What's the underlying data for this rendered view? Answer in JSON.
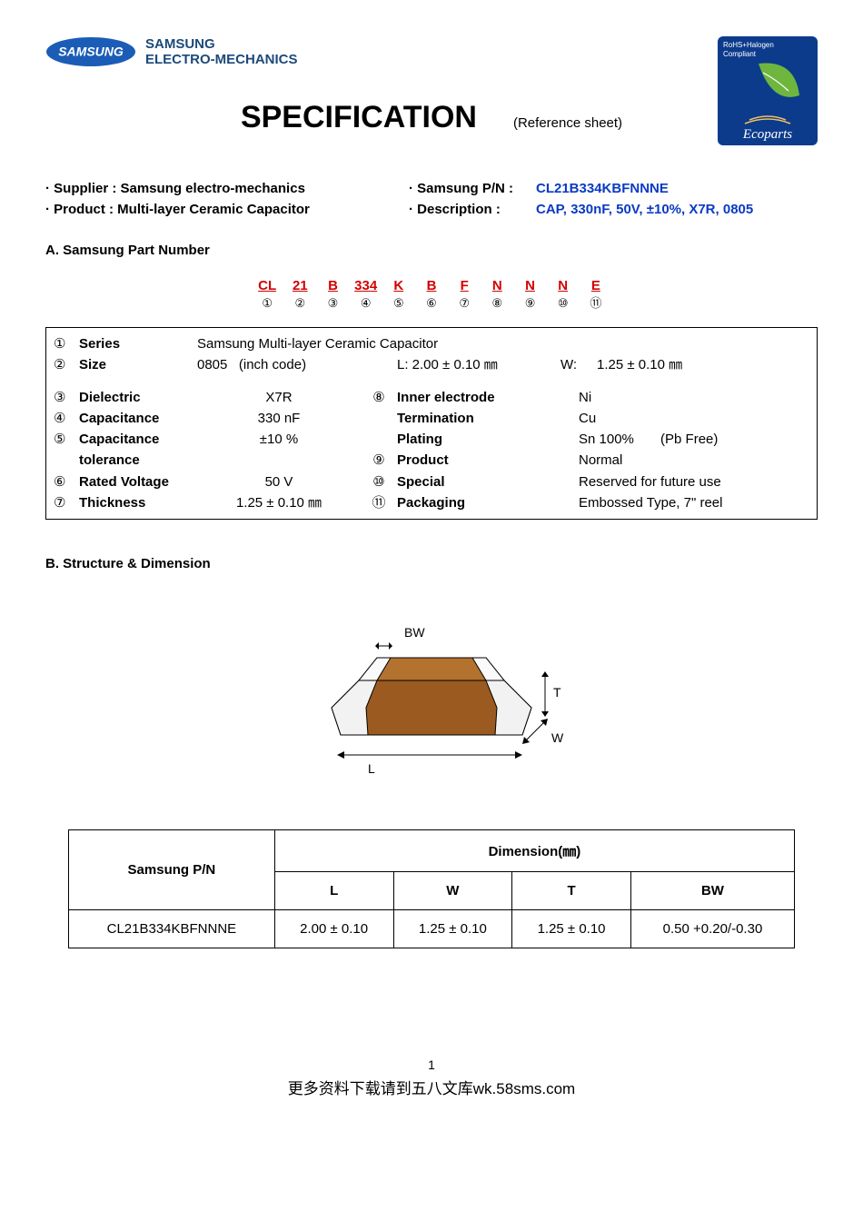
{
  "header": {
    "brand_line1": "SAMSUNG",
    "brand_line2": "ELECTRO-MECHANICS",
    "title": "SPECIFICATION",
    "subtitle": "(Reference sheet)",
    "eco_badge": {
      "top_text": "RoHS+Halogen\nCompliant",
      "bottom_text": "Ecoparts",
      "bg_color": "#0d3b8c",
      "leaf_color": "#6fb63f"
    },
    "logo": {
      "oval_fill": "#1b5db6",
      "text": "SAMSUNG"
    }
  },
  "info": {
    "supplier_label": "· Supplier : Samsung electro-mechanics",
    "product_label": "· Product : Multi-layer Ceramic Capacitor",
    "pn_label": "· Samsung P/N :",
    "pn_value": "CL21B334KBFNNNE",
    "desc_label": "· Description :",
    "desc_value": "CAP, 330nF, 50V, ±10%, X7R, 0805"
  },
  "sectionA": {
    "title": "A. Samsung Part Number",
    "codes": [
      "CL",
      "21",
      "B",
      "334",
      "K",
      "B",
      "F",
      "N",
      "N",
      "N",
      "E"
    ],
    "nums": [
      "①",
      "②",
      "③",
      "④",
      "⑤",
      "⑥",
      "⑦",
      "⑧",
      "⑨",
      "⑩",
      "⑪"
    ],
    "rows": [
      {
        "n1": "①",
        "l1": "Series",
        "v1": "Samsung Multi-layer Ceramic Capacitor",
        "n2": "",
        "l2": "",
        "v2": ""
      },
      {
        "n1": "②",
        "l1": "Size",
        "v1": "0805   (inch code)",
        "extra": "L: 2.00 ± 0.10 ㎜",
        "w_label": "W:",
        "w_val": "1.25 ± 0.10 ㎜"
      },
      {
        "n1": "",
        "l1": "",
        "v1": "",
        "n2": "",
        "l2": "",
        "v2": ""
      },
      {
        "n1": "③",
        "l1": "Dielectric",
        "v1": "X7R",
        "n2": "⑧",
        "l2": "Inner electrode",
        "v2": "Ni"
      },
      {
        "n1": "④",
        "l1": "Capacitance",
        "v1": "330 nF",
        "n2": "",
        "l2": "Termination",
        "v2": "Cu"
      },
      {
        "n1": "⑤",
        "l1": "Capacitance",
        "v1": "±10 %",
        "n2": "",
        "l2": "Plating",
        "v2": "Sn 100%       (Pb Free)"
      },
      {
        "n1": "",
        "l1": "tolerance",
        "v1": "",
        "n2": "⑨",
        "l2": "Product",
        "v2": "Normal"
      },
      {
        "n1": "⑥",
        "l1": "Rated Voltage",
        "v1": "50 V",
        "n2": "⑩",
        "l2": "Special",
        "v2": "Reserved for future use"
      },
      {
        "n1": "⑦",
        "l1": "Thickness",
        "v1": "1.25 ± 0.10 ㎜",
        "n2": "⑪",
        "l2": "Packaging",
        "v2": "Embossed Type, 7\" reel"
      }
    ]
  },
  "sectionB": {
    "title": "B. Structure & Dimension",
    "labels": {
      "L": "L",
      "W": "W",
      "T": "T",
      "BW": "BW"
    },
    "diagram": {
      "body_color": "#9a5a20",
      "end_color": "#f2f2f2",
      "stroke": "#000000"
    }
  },
  "dim_table": {
    "header_main": "Dimension(㎜)",
    "col_pn": "Samsung P/N",
    "cols": [
      "L",
      "W",
      "T",
      "BW"
    ],
    "row_pn": "CL21B334KBFNNNE",
    "row_vals": [
      "2.00 ± 0.10",
      "1.25 ± 0.10",
      "1.25 ± 0.10",
      "0.50 +0.20/-0.30"
    ]
  },
  "footer": {
    "page": "1",
    "line": "更多资料下载请到五八文库wk.58sms.com"
  }
}
